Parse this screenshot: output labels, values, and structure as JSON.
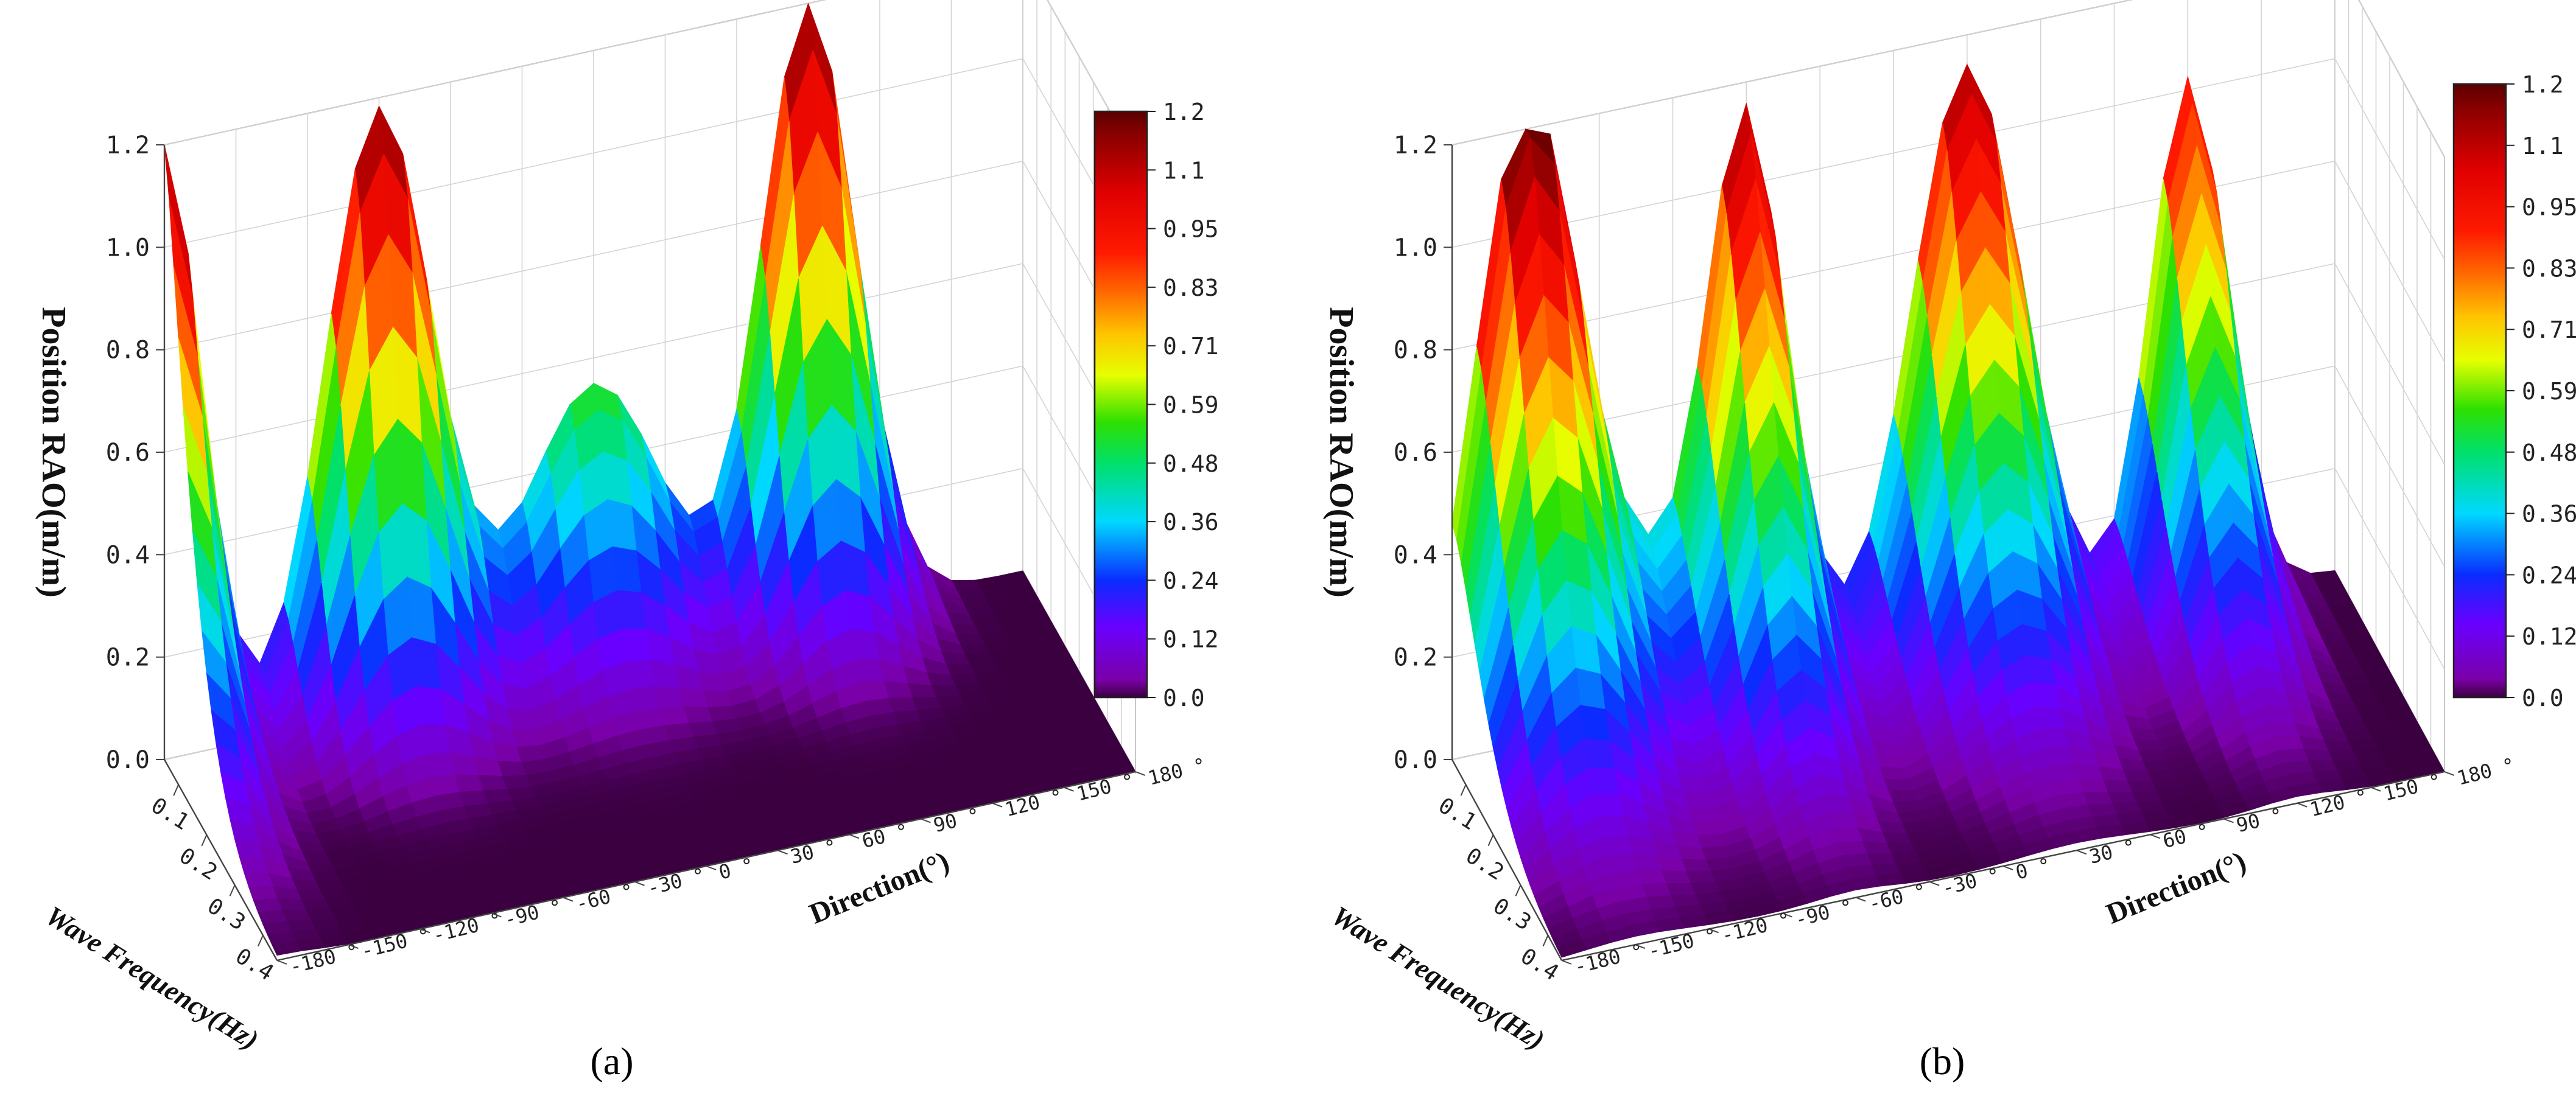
{
  "chart_data": [
    {
      "panel_label": "(a)",
      "type": "surface3d",
      "zlabel": "Position RAO(m/m)",
      "xlabel": "Wave Frequency(Hz)",
      "ylabel": "Direction(°)",
      "z_ticks": [
        "0.0",
        "0.2",
        "0.4",
        "0.6",
        "0.8",
        "1.0",
        "1.2"
      ],
      "x_ticks": [
        "0.1",
        "0.2",
        "0.3",
        "0.4"
      ],
      "y_ticks": [
        "-180 °",
        "-150 °",
        "-120 °",
        "-90 °",
        "-60 °",
        "-30 °",
        "0 °",
        "30 °",
        "60 °",
        "90 °",
        "120 °",
        "150 °",
        "180 °"
      ],
      "zlim": [
        0,
        1.2
      ],
      "xlim": [
        0.05,
        0.45
      ],
      "ylim": [
        -180,
        180
      ],
      "colorbar_ticks": [
        "0.0",
        "0.12",
        "0.24",
        "0.36",
        "0.48",
        "0.59",
        "0.71",
        "0.83",
        "0.95",
        "1.1",
        "1.2"
      ],
      "peaks": [
        {
          "frequency": 0.05,
          "direction": -180,
          "value": 1.2
        },
        {
          "frequency": 0.07,
          "direction": -90,
          "value": 1.18
        },
        {
          "frequency": 0.07,
          "direction": 90,
          "value": 1.2
        }
      ]
    },
    {
      "panel_label": "(b)",
      "type": "surface3d",
      "zlabel": "Position RAO(m/m)",
      "xlabel": "Wave Frequency(Hz)",
      "ylabel": "Direction(°)",
      "z_ticks": [
        "0.0",
        "0.2",
        "0.4",
        "0.6",
        "0.8",
        "1.0",
        "1.2"
      ],
      "x_ticks": [
        "0.1",
        "0.2",
        "0.3",
        "0.4"
      ],
      "y_ticks": [
        "-180 °",
        "-150 °",
        "-120 °",
        "-90 °",
        "-60 °",
        "-30 °",
        "0 °",
        "30 °",
        "60 °",
        "90 °",
        "120 °",
        "150 °",
        "180 °"
      ],
      "zlim": [
        0,
        1.2
      ],
      "xlim": [
        0.05,
        0.45
      ],
      "ylim": [
        -180,
        180
      ],
      "colorbar_ticks": [
        "0.0",
        "0.12",
        "0.24",
        "0.36",
        "0.48",
        "0.59",
        "0.71",
        "0.83",
        "0.95",
        "1.1",
        "1.2"
      ],
      "peaks": [
        {
          "frequency": 0.07,
          "direction": -150,
          "value": 1.2
        },
        {
          "frequency": 0.07,
          "direction": -60,
          "value": 1.05
        },
        {
          "frequency": 0.07,
          "direction": 30,
          "value": 1.2
        },
        {
          "frequency": 0.07,
          "direction": 120,
          "value": 1.08
        }
      ]
    }
  ]
}
